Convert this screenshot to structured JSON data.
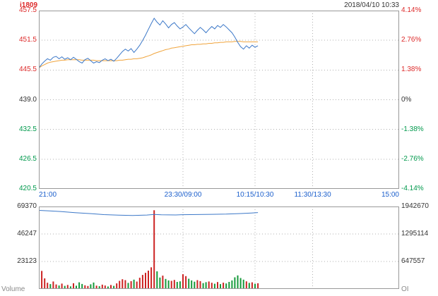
{
  "header": {
    "symbol": "i1809",
    "datetime": "2018/04/10 10:33"
  },
  "panel_labels": {
    "volume": "Volume",
    "oi": "OI"
  },
  "colors": {
    "up": "#dd2a2a",
    "down": "#00994c",
    "flat": "#333333",
    "time_label": "#1a5ecc",
    "price_line": "#3c78c8",
    "avg_line": "#f0a43c",
    "vol_up": "#cc2222",
    "vol_down": "#15993a",
    "oi_line": "#3c78c8",
    "grid": "#b0b0b0",
    "frame": "#999999",
    "symbol": "#dd2a2a",
    "datetime": "#333333",
    "panel_label": "#8a8a8a"
  },
  "chart_data": [
    {
      "type": "line",
      "title": "i1809 intraday price vs average",
      "x_tick_labels": [
        "21:00",
        "23:30/09:00",
        "10:15/10:30",
        "11:30/13:30",
        "15:00"
      ],
      "x_tick_positions": [
        0,
        0.4,
        0.6,
        0.76,
        1
      ],
      "left_axis": {
        "ticks": [
          {
            "text": "457.5",
            "tone": "up"
          },
          {
            "text": "451.5",
            "tone": "up"
          },
          {
            "text": "445.5",
            "tone": "up"
          },
          {
            "text": "439.0",
            "tone": "flat"
          },
          {
            "text": "432.5",
            "tone": "down"
          },
          {
            "text": "426.5",
            "tone": "down"
          },
          {
            "text": "420.5",
            "tone": "down"
          }
        ]
      },
      "right_axis": {
        "ticks": [
          {
            "text": "4.14%",
            "tone": "up"
          },
          {
            "text": "2.76%",
            "tone": "up"
          },
          {
            "text": "1.38%",
            "tone": "up"
          },
          {
            "text": "0%",
            "tone": "flat"
          },
          {
            "text": "-1.38%",
            "tone": "down"
          },
          {
            "text": "-2.76%",
            "tone": "down"
          },
          {
            "text": "-4.14%",
            "tone": "down"
          }
        ]
      },
      "prev_close": 439.0,
      "ylim": [
        420.5,
        457.5
      ],
      "x_start": 0,
      "x_end": 0.608,
      "series": [
        {
          "name": "price",
          "values": [
            445.6,
            446.4,
            447.0,
            447.5,
            447.2,
            447.8,
            448.0,
            447.5,
            447.9,
            447.4,
            447.7,
            447.3,
            447.8,
            447.4,
            446.9,
            446.6,
            447.3,
            447.6,
            447.1,
            446.6,
            446.9,
            446.7,
            447.2,
            447.5,
            447.1,
            447.4,
            447.0,
            447.6,
            448.3,
            449.0,
            449.5,
            449.1,
            449.6,
            448.8,
            449.5,
            450.3,
            451.3,
            452.4,
            453.6,
            454.8,
            455.9,
            455.1,
            454.5,
            455.4,
            454.7,
            453.9,
            454.6,
            455.0,
            454.3,
            453.7,
            454.1,
            454.6,
            453.9,
            453.3,
            452.7,
            453.4,
            454.0,
            453.5,
            452.9,
            453.6,
            454.2,
            453.7,
            454.4,
            454.0,
            454.6,
            454.1,
            453.5,
            452.9,
            452.0,
            450.9,
            450.0,
            449.5,
            450.2,
            449.7,
            450.3,
            449.9,
            450.2
          ]
        },
        {
          "name": "average",
          "values": [
            445.6,
            446.0,
            446.3,
            446.6,
            446.8,
            446.9,
            447.0,
            447.1,
            447.2,
            447.2,
            447.3,
            447.3,
            447.3,
            447.3,
            447.3,
            447.2,
            447.2,
            447.2,
            447.2,
            447.2,
            447.1,
            447.1,
            447.1,
            447.1,
            447.1,
            447.1,
            447.1,
            447.1,
            447.2,
            447.2,
            447.3,
            447.4,
            447.4,
            447.5,
            447.5,
            447.6,
            447.7,
            447.9,
            448.1,
            448.3,
            448.6,
            448.8,
            449.0,
            449.2,
            449.4,
            449.5,
            449.7,
            449.8,
            449.9,
            450.0,
            450.1,
            450.2,
            450.3,
            450.4,
            450.4,
            450.5,
            450.5,
            450.6,
            450.6,
            450.7,
            450.7,
            450.8,
            450.8,
            450.9,
            450.9,
            451.0,
            451.0,
            451.0,
            451.1,
            451.1,
            451.1,
            451.0,
            451.0,
            451.0,
            451.0,
            451.0,
            451.0
          ]
        }
      ]
    },
    {
      "type": "bar",
      "title": "Volume bars with open-interest line",
      "left_axis": {
        "ymax": 69370,
        "ticks": [
          {
            "text": "69370",
            "tone": "flat"
          },
          {
            "text": "46247",
            "tone": "flat"
          },
          {
            "text": "23123",
            "tone": "flat"
          }
        ]
      },
      "right_axis": {
        "ymax": 1942670,
        "ticks": [
          {
            "text": "1942670",
            "tone": "flat"
          },
          {
            "text": "1295114",
            "tone": "flat"
          },
          {
            "text": "647557",
            "tone": "flat"
          }
        ]
      },
      "volume": [
        26400,
        15200,
        8900,
        5200,
        4100,
        6300,
        3800,
        2900,
        4500,
        2600,
        3400,
        2200,
        4800,
        2700,
        5600,
        4200,
        3100,
        2500,
        3900,
        5400,
        2800,
        2300,
        3600,
        2900,
        2100,
        3300,
        2600,
        4700,
        6800,
        8200,
        7400,
        5100,
        6600,
        7800,
        6200,
        9400,
        11800,
        13600,
        15400,
        18200,
        66200,
        14800,
        9600,
        11200,
        8400,
        7200,
        6800,
        7600,
        5900,
        6400,
        12400,
        10800,
        8600,
        7200,
        6100,
        7400,
        6600,
        4900,
        5700,
        6300,
        5200,
        4400,
        5800,
        4100,
        5300,
        4600,
        5900,
        7200,
        9800,
        11400,
        9200,
        7800,
        6400,
        5100,
        5600,
        4300,
        4800
      ],
      "oi_points": [
        [
          0.0,
          1852000
        ],
        [
          0.03,
          1840000
        ],
        [
          0.06,
          1824000
        ],
        [
          0.1,
          1798000
        ],
        [
          0.14,
          1776000
        ],
        [
          0.18,
          1752000
        ],
        [
          0.22,
          1738000
        ],
        [
          0.26,
          1730000
        ],
        [
          0.3,
          1742000
        ],
        [
          0.32,
          1755000
        ],
        [
          0.34,
          1748000
        ],
        [
          0.38,
          1744000
        ],
        [
          0.4,
          1750000
        ],
        [
          0.44,
          1754000
        ],
        [
          0.48,
          1758000
        ],
        [
          0.52,
          1764000
        ],
        [
          0.56,
          1776000
        ],
        [
          0.59,
          1790000
        ],
        [
          0.608,
          1800000
        ]
      ]
    }
  ]
}
